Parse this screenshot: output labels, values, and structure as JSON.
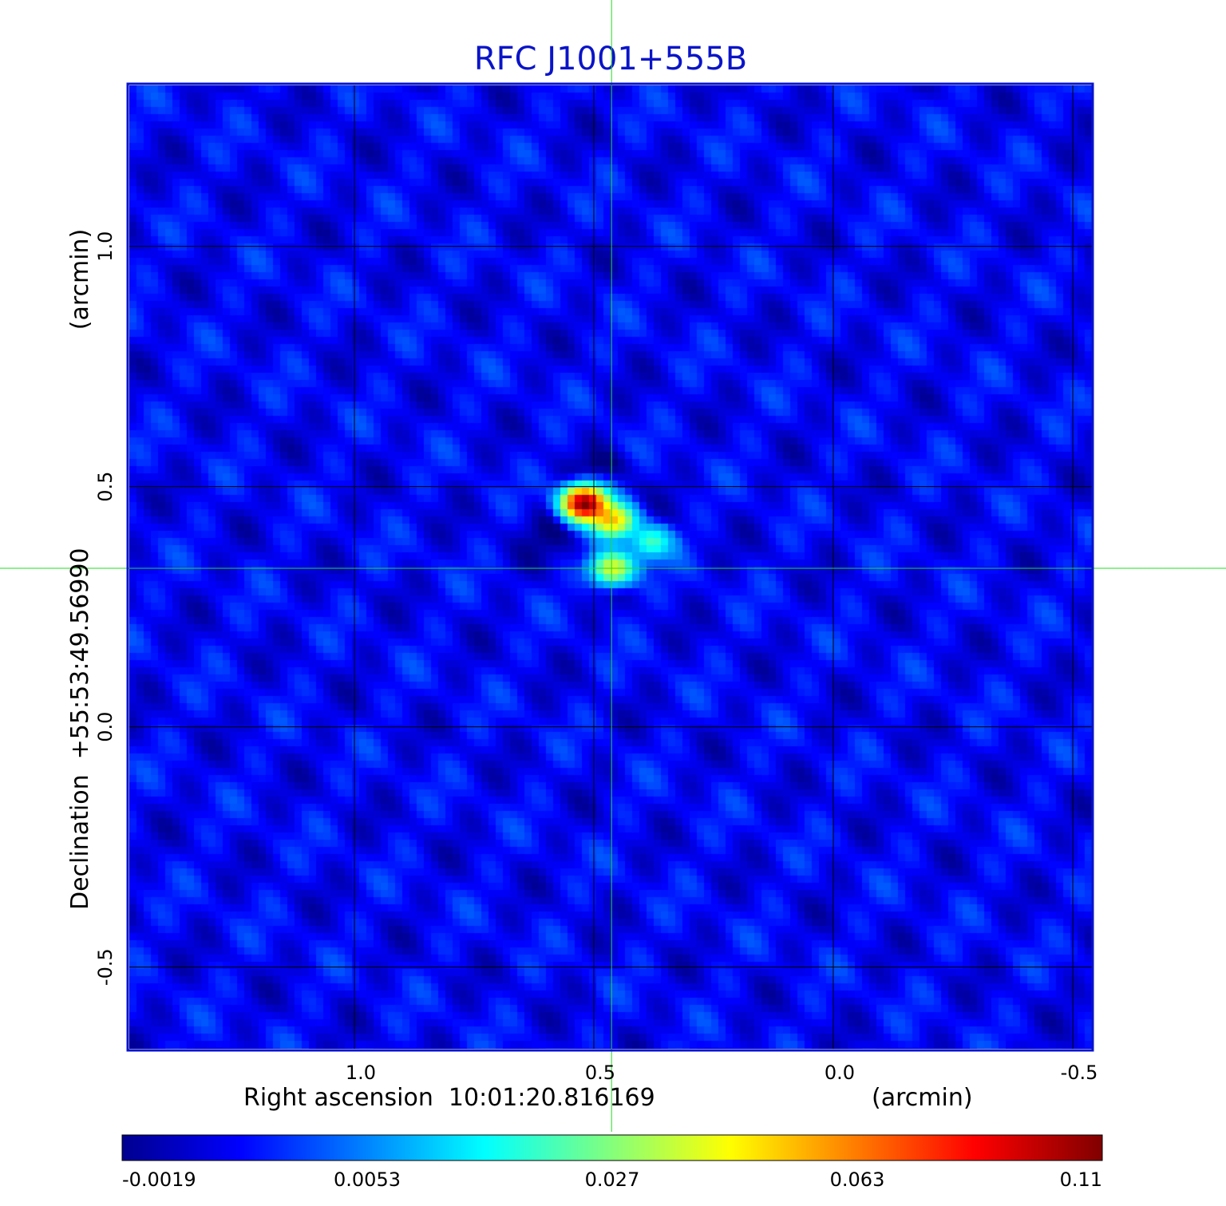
{
  "chart_data": {
    "type": "heatmap",
    "title": "RFC J1001+555B",
    "xlabel": "Right ascension  10:01:20.816169",
    "xunit": "(arcmin)",
    "ylabel": "Declination  +55:53:49.56990",
    "yunit": "(arcmin)",
    "xlim": [
      1.47,
      -0.54
    ],
    "ylim": [
      -0.67,
      1.335
    ],
    "x_ticks": [
      {
        "value": 1.0,
        "label": "1.0"
      },
      {
        "value": 0.5,
        "label": "0.5"
      },
      {
        "value": 0.0,
        "label": "0.0"
      },
      {
        "value": -0.5,
        "label": "-0.5"
      }
    ],
    "y_ticks": [
      {
        "value": 1.0,
        "label": "1.0"
      },
      {
        "value": 0.5,
        "label": "0.5"
      },
      {
        "value": 0.0,
        "label": "0.0"
      },
      {
        "value": -0.5,
        "label": "-0.5"
      }
    ],
    "grid": true,
    "crosshair": {
      "x": 0.463,
      "y": 0.33,
      "color": "#22dd22"
    },
    "colorbar": {
      "colormap": "jet",
      "ticks": [
        "-0.0019",
        "0.0053",
        "0.027",
        "0.063",
        "0.11"
      ],
      "min": -0.0019,
      "max": 0.11
    },
    "sources": [
      {
        "x": 0.52,
        "y": 0.465,
        "peak": 0.11
      },
      {
        "x": 0.46,
        "y": 0.43,
        "peak": 0.05
      },
      {
        "x": 0.38,
        "y": 0.385,
        "peak": 0.02
      },
      {
        "x": 0.46,
        "y": 0.33,
        "peak": 0.04
      }
    ],
    "background_level": 0.0015,
    "colors": {
      "title": "#0a14c8",
      "frame": "#0a14c8",
      "grid": "#000000",
      "crosshair": "#22dd22"
    }
  }
}
